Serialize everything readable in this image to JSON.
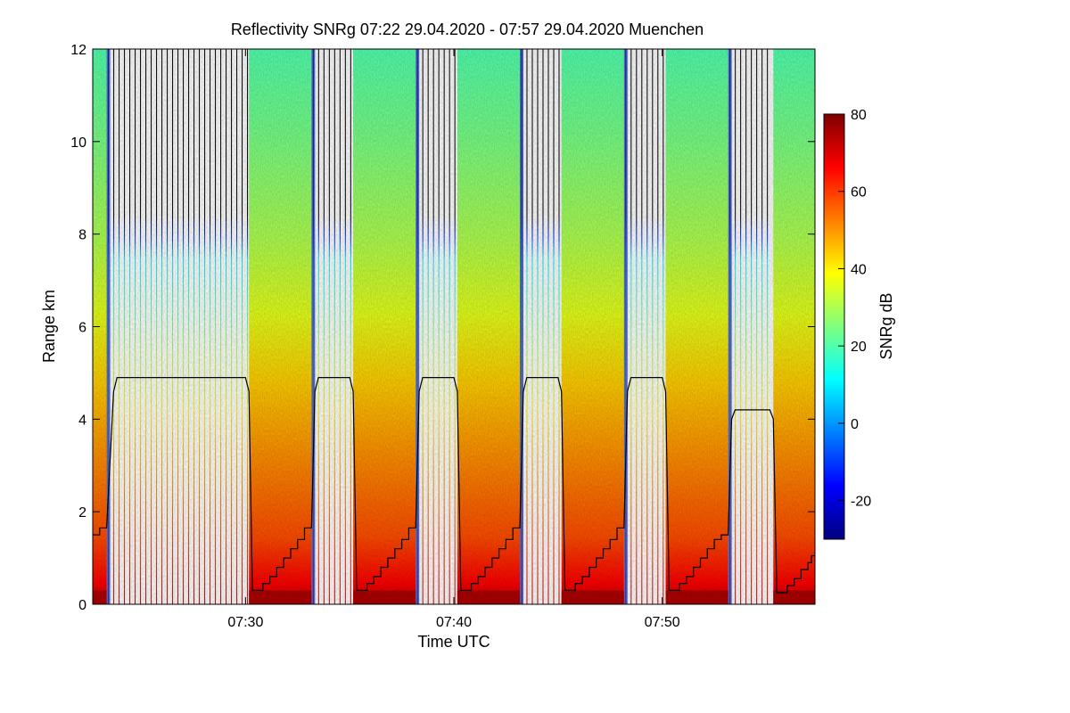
{
  "chart_data": {
    "type": "heatmap",
    "title": "Reflectivity SNRg   07:22 29.04.2020 - 07:57 29.04.2020 Muenchen",
    "xlabel": "Time UTC",
    "ylabel": "Range km",
    "colorbar_label": "SNRg dB",
    "x_range": [
      "07:22:40",
      "07:57:20"
    ],
    "ylim": [
      0,
      12
    ],
    "x_ticks": [
      "07:30",
      "07:40",
      "07:50"
    ],
    "y_ticks": [
      0,
      2,
      4,
      6,
      8,
      10,
      12
    ],
    "colorbar_range": [
      -30,
      80
    ],
    "colorbar_ticks": [
      -20,
      0,
      20,
      40,
      60,
      80
    ],
    "colormap": [
      "#00007f",
      "#0000ff",
      "#007fff",
      "#00ffff",
      "#7fff7f",
      "#ffff00",
      "#ff7f00",
      "#ff0000",
      "#7f0000"
    ],
    "grid": false,
    "scan_blocks": [
      {
        "type": "vertical",
        "start": "07:22:40",
        "end": "07:23:20"
      },
      {
        "type": "rhi",
        "start": "07:23:20",
        "end": "07:30:10"
      },
      {
        "type": "vertical",
        "start": "07:30:10",
        "end": "07:33:10"
      },
      {
        "type": "rhi",
        "start": "07:33:10",
        "end": "07:35:10"
      },
      {
        "type": "vertical",
        "start": "07:35:10",
        "end": "07:38:10"
      },
      {
        "type": "rhi",
        "start": "07:38:10",
        "end": "07:40:10"
      },
      {
        "type": "vertical",
        "start": "07:40:10",
        "end": "07:43:10"
      },
      {
        "type": "rhi",
        "start": "07:43:10",
        "end": "07:45:10"
      },
      {
        "type": "vertical",
        "start": "07:45:10",
        "end": "07:48:10"
      },
      {
        "type": "rhi",
        "start": "07:48:10",
        "end": "07:50:10"
      },
      {
        "type": "vertical",
        "start": "07:50:10",
        "end": "07:53:10"
      },
      {
        "type": "rhi",
        "start": "07:53:10",
        "end": "07:55:20"
      },
      {
        "type": "vertical",
        "start": "07:55:20",
        "end": "07:57:20"
      }
    ],
    "black_line": [
      [
        "07:22:40",
        1.5
      ],
      [
        "07:23:00",
        1.5
      ],
      [
        "07:23:00",
        1.65
      ],
      [
        "07:23:20",
        1.65
      ],
      [
        "07:23:40",
        4.6
      ],
      [
        "07:23:50",
        4.9
      ],
      [
        "07:30:00",
        4.9
      ],
      [
        "07:30:10",
        4.6
      ],
      [
        "07:30:20",
        0.3
      ],
      [
        "07:30:50",
        0.3
      ],
      [
        "07:30:50",
        0.45
      ],
      [
        "07:31:10",
        0.45
      ],
      [
        "07:31:10",
        0.6
      ],
      [
        "07:31:30",
        0.6
      ],
      [
        "07:31:30",
        0.8
      ],
      [
        "07:31:50",
        0.8
      ],
      [
        "07:31:50",
        1.0
      ],
      [
        "07:32:10",
        1.0
      ],
      [
        "07:32:10",
        1.2
      ],
      [
        "07:32:30",
        1.2
      ],
      [
        "07:32:30",
        1.4
      ],
      [
        "07:32:50",
        1.4
      ],
      [
        "07:32:50",
        1.65
      ],
      [
        "07:33:10",
        1.65
      ],
      [
        "07:33:20",
        4.6
      ],
      [
        "07:33:30",
        4.9
      ],
      [
        "07:35:00",
        4.9
      ],
      [
        "07:35:10",
        4.6
      ],
      [
        "07:35:20",
        0.3
      ],
      [
        "07:35:50",
        0.3
      ],
      [
        "07:35:50",
        0.45
      ],
      [
        "07:36:10",
        0.45
      ],
      [
        "07:36:10",
        0.6
      ],
      [
        "07:36:30",
        0.6
      ],
      [
        "07:36:30",
        0.8
      ],
      [
        "07:36:50",
        0.8
      ],
      [
        "07:36:50",
        1.0
      ],
      [
        "07:37:10",
        1.0
      ],
      [
        "07:37:10",
        1.2
      ],
      [
        "07:37:30",
        1.2
      ],
      [
        "07:37:30",
        1.4
      ],
      [
        "07:37:50",
        1.4
      ],
      [
        "07:37:50",
        1.65
      ],
      [
        "07:38:10",
        1.65
      ],
      [
        "07:38:20",
        4.6
      ],
      [
        "07:38:30",
        4.9
      ],
      [
        "07:40:00",
        4.9
      ],
      [
        "07:40:10",
        4.6
      ],
      [
        "07:40:20",
        0.3
      ],
      [
        "07:40:50",
        0.3
      ],
      [
        "07:40:50",
        0.45
      ],
      [
        "07:41:10",
        0.45
      ],
      [
        "07:41:10",
        0.6
      ],
      [
        "07:41:30",
        0.6
      ],
      [
        "07:41:30",
        0.8
      ],
      [
        "07:41:50",
        0.8
      ],
      [
        "07:41:50",
        1.0
      ],
      [
        "07:42:10",
        1.0
      ],
      [
        "07:42:10",
        1.2
      ],
      [
        "07:42:30",
        1.2
      ],
      [
        "07:42:30",
        1.4
      ],
      [
        "07:42:50",
        1.4
      ],
      [
        "07:42:50",
        1.65
      ],
      [
        "07:43:10",
        1.65
      ],
      [
        "07:43:20",
        4.6
      ],
      [
        "07:43:30",
        4.9
      ],
      [
        "07:45:00",
        4.9
      ],
      [
        "07:45:10",
        4.6
      ],
      [
        "07:45:20",
        0.3
      ],
      [
        "07:45:50",
        0.3
      ],
      [
        "07:45:50",
        0.45
      ],
      [
        "07:46:10",
        0.45
      ],
      [
        "07:46:10",
        0.6
      ],
      [
        "07:46:30",
        0.6
      ],
      [
        "07:46:30",
        0.8
      ],
      [
        "07:46:50",
        0.8
      ],
      [
        "07:46:50",
        1.0
      ],
      [
        "07:47:10",
        1.0
      ],
      [
        "07:47:10",
        1.2
      ],
      [
        "07:47:30",
        1.2
      ],
      [
        "07:47:30",
        1.4
      ],
      [
        "07:47:50",
        1.4
      ],
      [
        "07:47:50",
        1.65
      ],
      [
        "07:48:10",
        1.65
      ],
      [
        "07:48:20",
        4.6
      ],
      [
        "07:48:30",
        4.9
      ],
      [
        "07:50:00",
        4.9
      ],
      [
        "07:50:10",
        4.6
      ],
      [
        "07:50:20",
        0.3
      ],
      [
        "07:50:50",
        0.3
      ],
      [
        "07:50:50",
        0.45
      ],
      [
        "07:51:10",
        0.45
      ],
      [
        "07:51:10",
        0.6
      ],
      [
        "07:51:30",
        0.6
      ],
      [
        "07:51:30",
        0.8
      ],
      [
        "07:51:50",
        0.8
      ],
      [
        "07:51:50",
        1.0
      ],
      [
        "07:52:10",
        1.0
      ],
      [
        "07:52:10",
        1.2
      ],
      [
        "07:52:30",
        1.2
      ],
      [
        "07:52:30",
        1.4
      ],
      [
        "07:52:50",
        1.4
      ],
      [
        "07:52:50",
        1.5
      ],
      [
        "07:53:10",
        1.5
      ],
      [
        "07:53:20",
        4.0
      ],
      [
        "07:53:30",
        4.2
      ],
      [
        "07:55:10",
        4.2
      ],
      [
        "07:55:20",
        4.0
      ],
      [
        "07:55:30",
        0.25
      ],
      [
        "07:56:00",
        0.25
      ],
      [
        "07:56:00",
        0.4
      ],
      [
        "07:56:20",
        0.4
      ],
      [
        "07:56:20",
        0.55
      ],
      [
        "07:56:40",
        0.55
      ],
      [
        "07:56:40",
        0.75
      ],
      [
        "07:57:00",
        0.75
      ],
      [
        "07:57:00",
        0.9
      ],
      [
        "07:57:10",
        0.9
      ],
      [
        "07:57:10",
        1.05
      ],
      [
        "07:57:20",
        1.05
      ]
    ]
  }
}
